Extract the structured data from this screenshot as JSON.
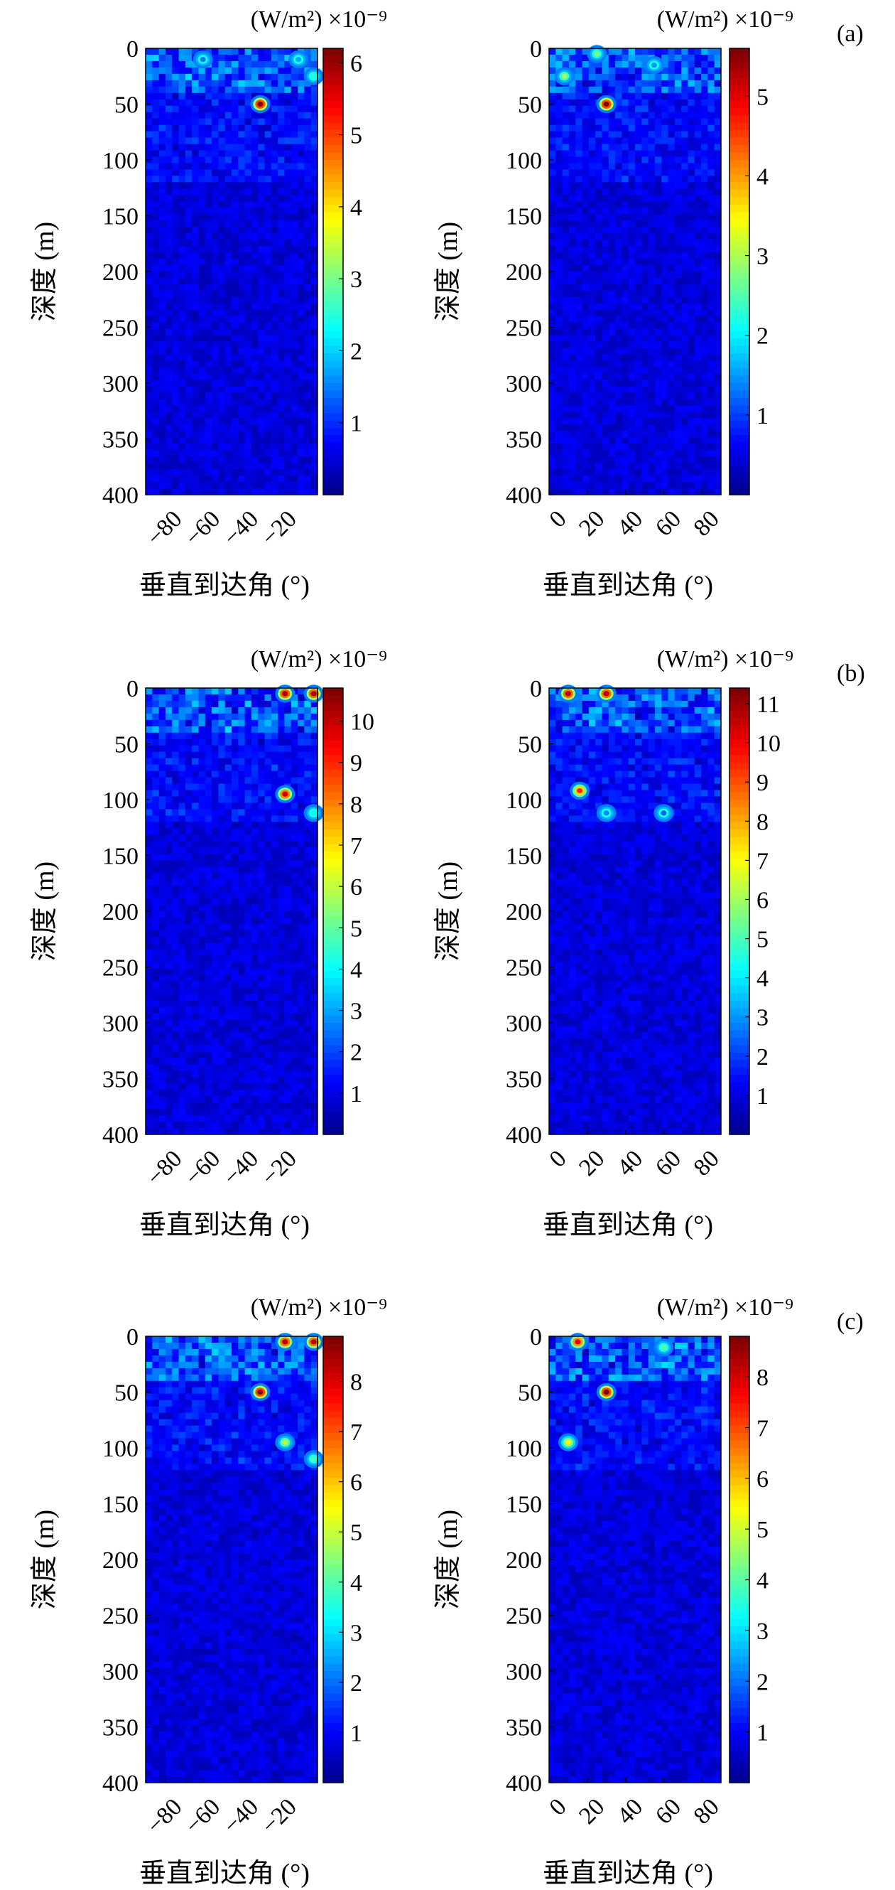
{
  "figure": {
    "ylabel": "深度 (m)",
    "xlabel": "垂直到达角 (°)",
    "unit_text": "(W/m²) ×10⁻⁹",
    "rows": [
      {
        "label": "(a)",
        "panels": [
          {
            "xticks": [
              "−80",
              "−60",
              "−40",
              "−20"
            ],
            "yticks": [
              "0",
              "50",
              "100",
              "150",
              "200",
              "250",
              "300",
              "350",
              "400"
            ],
            "cbar_ticks": [
              "1",
              "2",
              "3",
              "4",
              "5",
              "6"
            ],
            "cbar_max": 6.2
          },
          {
            "xticks": [
              "0",
              "20",
              "40",
              "60",
              "80"
            ],
            "yticks": [
              "0",
              "50",
              "100",
              "150",
              "200",
              "250",
              "300",
              "350",
              "400"
            ],
            "cbar_ticks": [
              "1",
              "2",
              "3",
              "4",
              "5"
            ],
            "cbar_max": 5.6
          }
        ]
      },
      {
        "label": "(b)",
        "panels": [
          {
            "xticks": [
              "−80",
              "−60",
              "−40",
              "−20"
            ],
            "yticks": [
              "0",
              "50",
              "100",
              "150",
              "200",
              "250",
              "300",
              "350",
              "400"
            ],
            "cbar_ticks": [
              "1",
              "2",
              "3",
              "4",
              "5",
              "6",
              "7",
              "8",
              "9",
              "10"
            ],
            "cbar_max": 10.8
          },
          {
            "xticks": [
              "0",
              "20",
              "40",
              "60",
              "80"
            ],
            "yticks": [
              "0",
              "50",
              "100",
              "150",
              "200",
              "250",
              "300",
              "350",
              "400"
            ],
            "cbar_ticks": [
              "1",
              "2",
              "3",
              "4",
              "5",
              "6",
              "7",
              "8",
              "9",
              "10",
              "11"
            ],
            "cbar_max": 11.4
          }
        ]
      },
      {
        "label": "(c)",
        "panels": [
          {
            "xticks": [
              "−80",
              "−60",
              "−40",
              "−20"
            ],
            "yticks": [
              "0",
              "50",
              "100",
              "150",
              "200",
              "250",
              "300",
              "350",
              "400"
            ],
            "cbar_ticks": [
              "1",
              "2",
              "3",
              "4",
              "5",
              "6",
              "7",
              "8"
            ],
            "cbar_max": 8.9
          },
          {
            "xticks": [
              "0",
              "20",
              "40",
              "60",
              "80"
            ],
            "yticks": [
              "0",
              "50",
              "100",
              "150",
              "200",
              "250",
              "300",
              "350",
              "400"
            ],
            "cbar_ticks": [
              "1",
              "2",
              "3",
              "4",
              "5",
              "6",
              "7",
              "8"
            ],
            "cbar_max": 8.8
          }
        ]
      }
    ]
  },
  "chart_data": [
    {
      "type": "heatmap",
      "panel": "a-left",
      "xlabel": "垂直到达角 (°)",
      "ylabel": "深度 (m)",
      "xlim": [
        -90,
        0
      ],
      "ylim": [
        400,
        0
      ],
      "colorbar_label": "(W/m²) ×10⁻⁹",
      "colorbar_range": [
        0,
        6.2
      ],
      "hotspots": [
        {
          "x": -30,
          "y": 50,
          "value": 6.2
        },
        {
          "x": -60,
          "y": 10,
          "value": 1.5
        },
        {
          "x": -10,
          "y": 10,
          "value": 1.8
        },
        {
          "x": -2,
          "y": 25,
          "value": 2.5
        }
      ]
    },
    {
      "type": "heatmap",
      "panel": "a-right",
      "xlabel": "垂直到达角 (°)",
      "ylabel": "深度 (m)",
      "xlim": [
        0,
        90
      ],
      "ylim": [
        400,
        0
      ],
      "colorbar_label": "(W/m²) ×10⁻⁹",
      "colorbar_range": [
        0,
        5.6
      ],
      "hotspots": [
        {
          "x": 30,
          "y": 50,
          "value": 5.6
        },
        {
          "x": 8,
          "y": 25,
          "value": 3.0
        },
        {
          "x": 25,
          "y": 5,
          "value": 2.8
        },
        {
          "x": 55,
          "y": 15,
          "value": 1.5
        }
      ]
    },
    {
      "type": "heatmap",
      "panel": "b-left",
      "xlabel": "垂直到达角 (°)",
      "ylabel": "深度 (m)",
      "xlim": [
        -90,
        0
      ],
      "ylim": [
        400,
        0
      ],
      "colorbar_label": "(W/m²) ×10⁻⁹",
      "colorbar_range": [
        0,
        10.8
      ],
      "hotspots": [
        {
          "x": -17,
          "y": 5,
          "value": 10.5
        },
        {
          "x": -2,
          "y": 5,
          "value": 10.5
        },
        {
          "x": -17,
          "y": 95,
          "value": 10.0
        },
        {
          "x": -2,
          "y": 112,
          "value": 4.0
        }
      ]
    },
    {
      "type": "heatmap",
      "panel": "b-right",
      "xlabel": "垂直到达角 (°)",
      "ylabel": "深度 (m)",
      "xlim": [
        0,
        90
      ],
      "ylim": [
        400,
        0
      ],
      "colorbar_label": "(W/m²) ×10⁻⁹",
      "colorbar_range": [
        0,
        11.4
      ],
      "hotspots": [
        {
          "x": 10,
          "y": 5,
          "value": 11.0
        },
        {
          "x": 30,
          "y": 5,
          "value": 11.0
        },
        {
          "x": 16,
          "y": 92,
          "value": 9.5
        },
        {
          "x": 30,
          "y": 112,
          "value": 3.0
        },
        {
          "x": 60,
          "y": 112,
          "value": 2.5
        }
      ]
    },
    {
      "type": "heatmap",
      "panel": "c-left",
      "xlabel": "垂直到达角 (°)",
      "ylabel": "深度 (m)",
      "xlim": [
        -90,
        0
      ],
      "ylim": [
        400,
        0
      ],
      "colorbar_label": "(W/m²) ×10⁻⁹",
      "colorbar_range": [
        0,
        8.9
      ],
      "hotspots": [
        {
          "x": -30,
          "y": 50,
          "value": 8.9
        },
        {
          "x": -17,
          "y": 5,
          "value": 8.5
        },
        {
          "x": -2,
          "y": 5,
          "value": 8.5
        },
        {
          "x": -17,
          "y": 95,
          "value": 5.0
        },
        {
          "x": -2,
          "y": 110,
          "value": 4.0
        }
      ]
    },
    {
      "type": "heatmap",
      "panel": "c-right",
      "xlabel": "垂直到达角 (°)",
      "ylabel": "深度 (m)",
      "xlim": [
        0,
        90
      ],
      "ylim": [
        400,
        0
      ],
      "colorbar_label": "(W/m²) ×10⁻⁹",
      "colorbar_range": [
        0,
        8.8
      ],
      "hotspots": [
        {
          "x": 30,
          "y": 50,
          "value": 8.8
        },
        {
          "x": 15,
          "y": 5,
          "value": 8.0
        },
        {
          "x": 10,
          "y": 95,
          "value": 5.5
        },
        {
          "x": 60,
          "y": 10,
          "value": 4.0
        }
      ]
    }
  ]
}
